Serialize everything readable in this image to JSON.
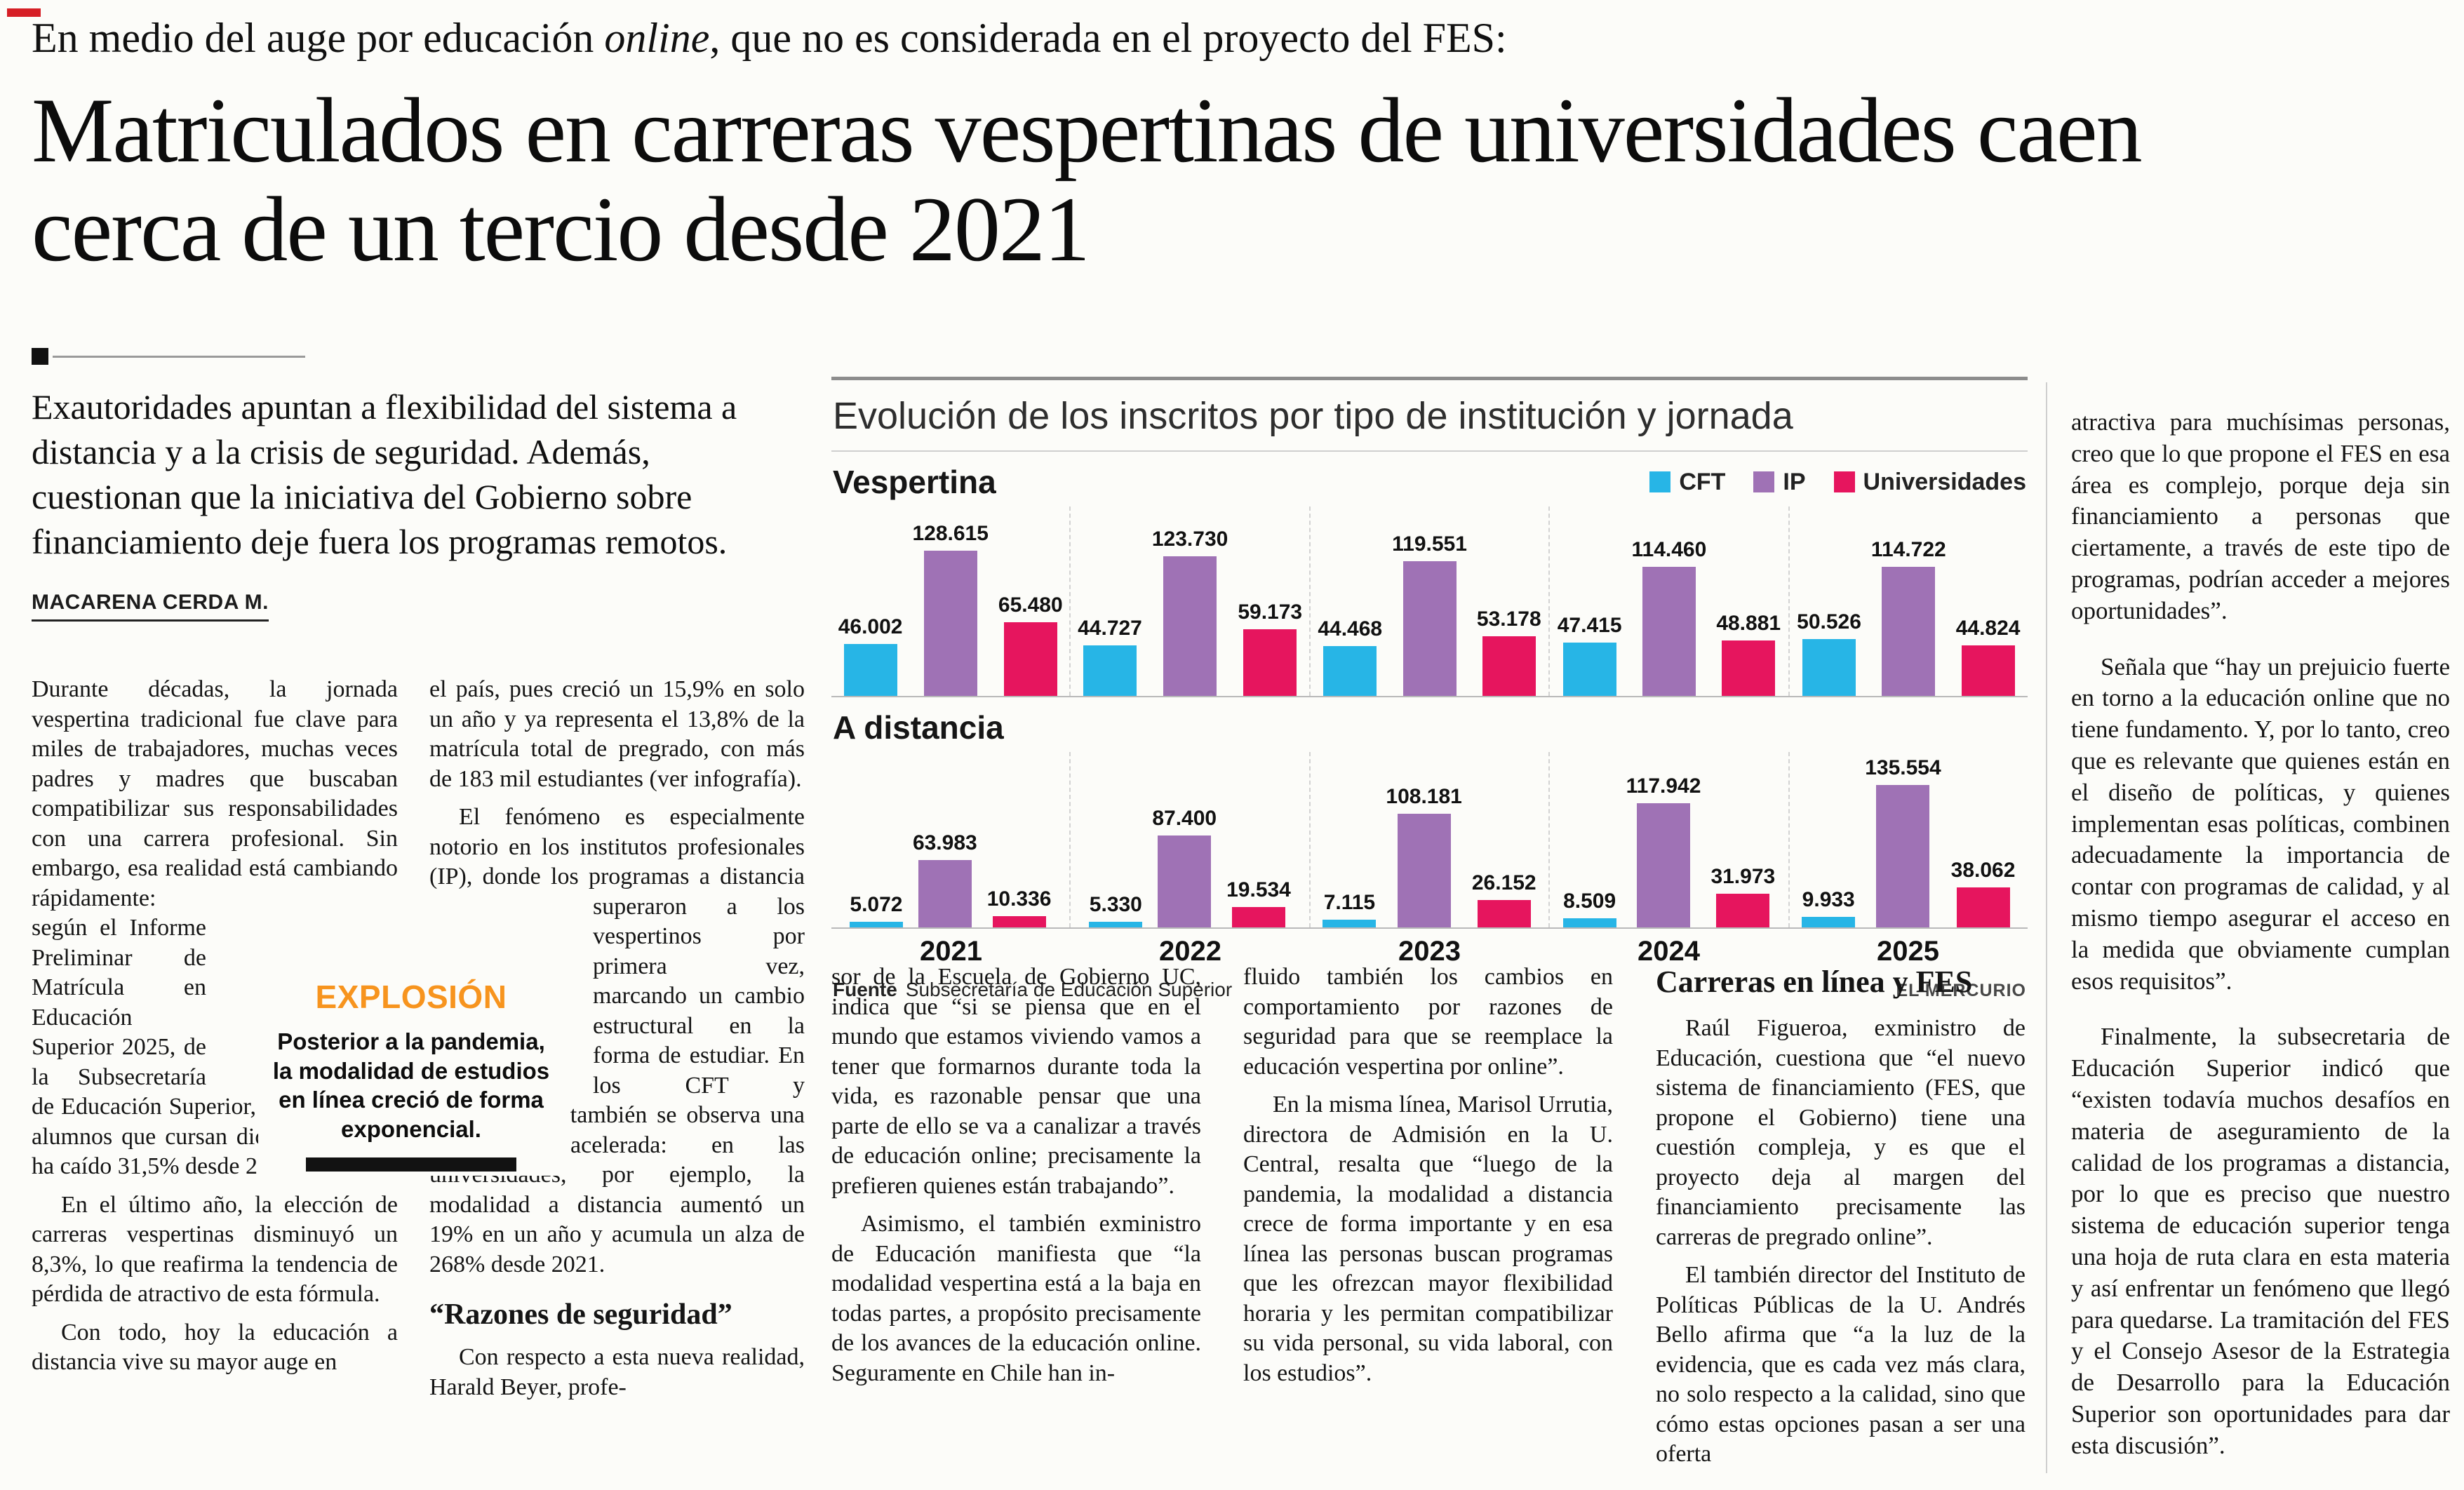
{
  "article": {
    "kicker": {
      "pre": "En medio del auge por educación ",
      "italic": "online",
      "post": ", que no es considerada en el proyecto del FES:"
    },
    "headline": "Matriculados en carreras vespertinas de universidades caen cerca de un tercio desde 2021",
    "lead": "Exautoridades apuntan a flexibilidad del sistema a distancia y a la crisis de seguridad. Además, cuestionan que la iniciativa del Gobierno sobre financiamiento deje fuera los programas remotos.",
    "byline": "MACARENA CERDA M.",
    "col1": {
      "p1a": "Durante décadas, la jornada vespertina tradicional fue clave para miles de trabajadores, muchas veces padres y madres que buscaban compatibilizar sus responsabilidades con una carrera profesional. Sin embargo, esa realidad está ",
      "p1b": "cambiando rápidamente: según el Informe Preliminar de Matrícula en Educación Superior 2025, de la Subsecretaría de Educación Superior, la cantidad de alumnos que cursan dicha modalidad ha caído 31,5% desde 2021.",
      "p2": "En el último año, la elección de carreras vespertinas disminuyó un 8,3%, lo que reafirma la tendencia de pérdida de atractivo de esta fórmula.",
      "p3": "Con todo, hoy la educación a distancia vive su mayor auge en"
    },
    "col2": {
      "p1": "el país, pues creció un 15,9% en solo un año y ya representa el 13,8% de la matrícula total de pregrado, con más de 183 mil estudiantes (ver infografía).",
      "p2a": "El fenómeno es especialmente notorio en los institutos profesionales (IP), donde los programas a distancia superaron a los ",
      "p2b": "vespertinos por primera vez, marcando un cambio estructural en la forma de estudiar. En los CFT y universidades también se observa una expansión acelerada: en las universidades, por ejemplo, la modalidad a distancia aumentó un 19% en un año y acumula un alza de 268% desde 2021.",
      "subhead": "“Razones de seguridad”",
      "p3": "Con respecto a esta nueva realidad, Harald Beyer, profe-"
    },
    "col3": {
      "p1": "sor de la Escuela de Gobierno UC, indica que “si se piensa que en el mundo que estamos viviendo vamos a tener que formarnos durante toda la vida, es razonable pensar que una parte de ello se va a canalizar a través de educación online; precisamente la prefieren quienes están trabajando”.",
      "p2": "Asimismo, el también exministro de Educación manifiesta que “la modalidad vespertina está a la baja en todas partes, a propósito precisamente de los avances de la educación online. Seguramente en Chile han in-"
    },
    "col4": {
      "p1": "fluido también los cambios en comportamiento por razones de seguridad para que se reemplace la educación vespertina por online”.",
      "p2": "En la misma línea, Marisol Urrutia, directora de Admisión en la U. Central, resalta que “luego de la pandemia, la modalidad a distancia crece de forma importante y en esa línea las personas buscan programas que les ofrezcan mayor flexibilidad horaria y les permitan compatibilizar su vida personal, su vida laboral, con los estudios”."
    },
    "col5": {
      "heading": "Carreras en línea y FES",
      "p1": "Raúl Figueroa, exministro de Educación, cuestiona que “el nuevo sistema de financiamiento (FES, que propone el Gobierno) tiene una cuestión compleja, y es que el proyecto deja al margen del financiamiento precisamente las carreras de pregrado online”.",
      "p2": "El también director del Instituto de Políticas Públicas de la U. Andrés Bello afirma que “a la luz de la evidencia, que es cada vez más clara, no solo respecto a la calidad, sino que cómo estas opciones pasan a ser una oferta"
    },
    "col6": {
      "p1": "atractiva para muchísimas personas, creo que lo que propone el FES en esa área es complejo, porque deja sin financiamiento a personas que ciertamente, a través de este tipo de programas, podrían acceder a mejores oportunidades”.",
      "p2": "Señala que “hay un prejuicio fuerte en torno a la educación online que no tiene fundamento. Y, por lo tanto, creo que es relevante que quienes están en el diseño de políticas, y quienes implementan esas políticas, combinen adecuadamente la importancia de contar con programas de calidad, y al mismo tiempo asegurar el acceso en la medida que obviamente cumplan esos requisitos”.",
      "p3": "Finalmente, la subsecretaria de Educación Superior indicó que “existen todavía muchos desafíos en materia de aseguramiento de la calidad de los programas a distancia, por lo que es preciso que nuestro sistema de educación superior tenga una hoja de ruta clara en esta materia y así enfrentar un fenómeno que llegó para quedarse. La tramitación del FES y el Consejo Asesor de la Estrategia de Desarrollo para la Educación Superior son oportunidades para dar esta discusión”."
    }
  },
  "explosion_box": {
    "title": "EXPLOSIÓN",
    "text": "Posterior a la pandemia, la modalidad de estudios en línea creció de forma exponencial.",
    "accent_color": "#f7941e"
  },
  "chart_data": {
    "type": "bar",
    "title": "Evolución de los inscritos por tipo de institución y jornada",
    "categories": [
      "2021",
      "2022",
      "2023",
      "2024",
      "2025"
    ],
    "legend": [
      {
        "name": "CFT",
        "color": "#27b5e6"
      },
      {
        "name": "IP",
        "color": "#9f72b5"
      },
      {
        "name": "Universidades",
        "color": "#e6155e"
      }
    ],
    "panels": [
      {
        "label": "Vespertina",
        "series": [
          {
            "name": "CFT",
            "values": [
              46002,
              44727,
              44468,
              47415,
              50526
            ]
          },
          {
            "name": "IP",
            "values": [
              128615,
              123730,
              119551,
              114460,
              114722
            ]
          },
          {
            "name": "Universidades",
            "values": [
              65480,
              59173,
              53178,
              48881,
              44824
            ]
          }
        ]
      },
      {
        "label": "A distancia",
        "series": [
          {
            "name": "CFT",
            "values": [
              5072,
              5330,
              7115,
              8509,
              9933
            ]
          },
          {
            "name": "IP",
            "values": [
              63983,
              87400,
              108181,
              117942,
              135554
            ]
          },
          {
            "name": "Universidades",
            "values": [
              10336,
              19534,
              26152,
              31973,
              38062
            ]
          }
        ]
      }
    ],
    "value_scale": 140000,
    "legend_position": "top-right",
    "grid": false,
    "source_label": "Fuente",
    "source": "Subsecretaría de Educación Superior",
    "credit": "EL MERCURIO"
  }
}
